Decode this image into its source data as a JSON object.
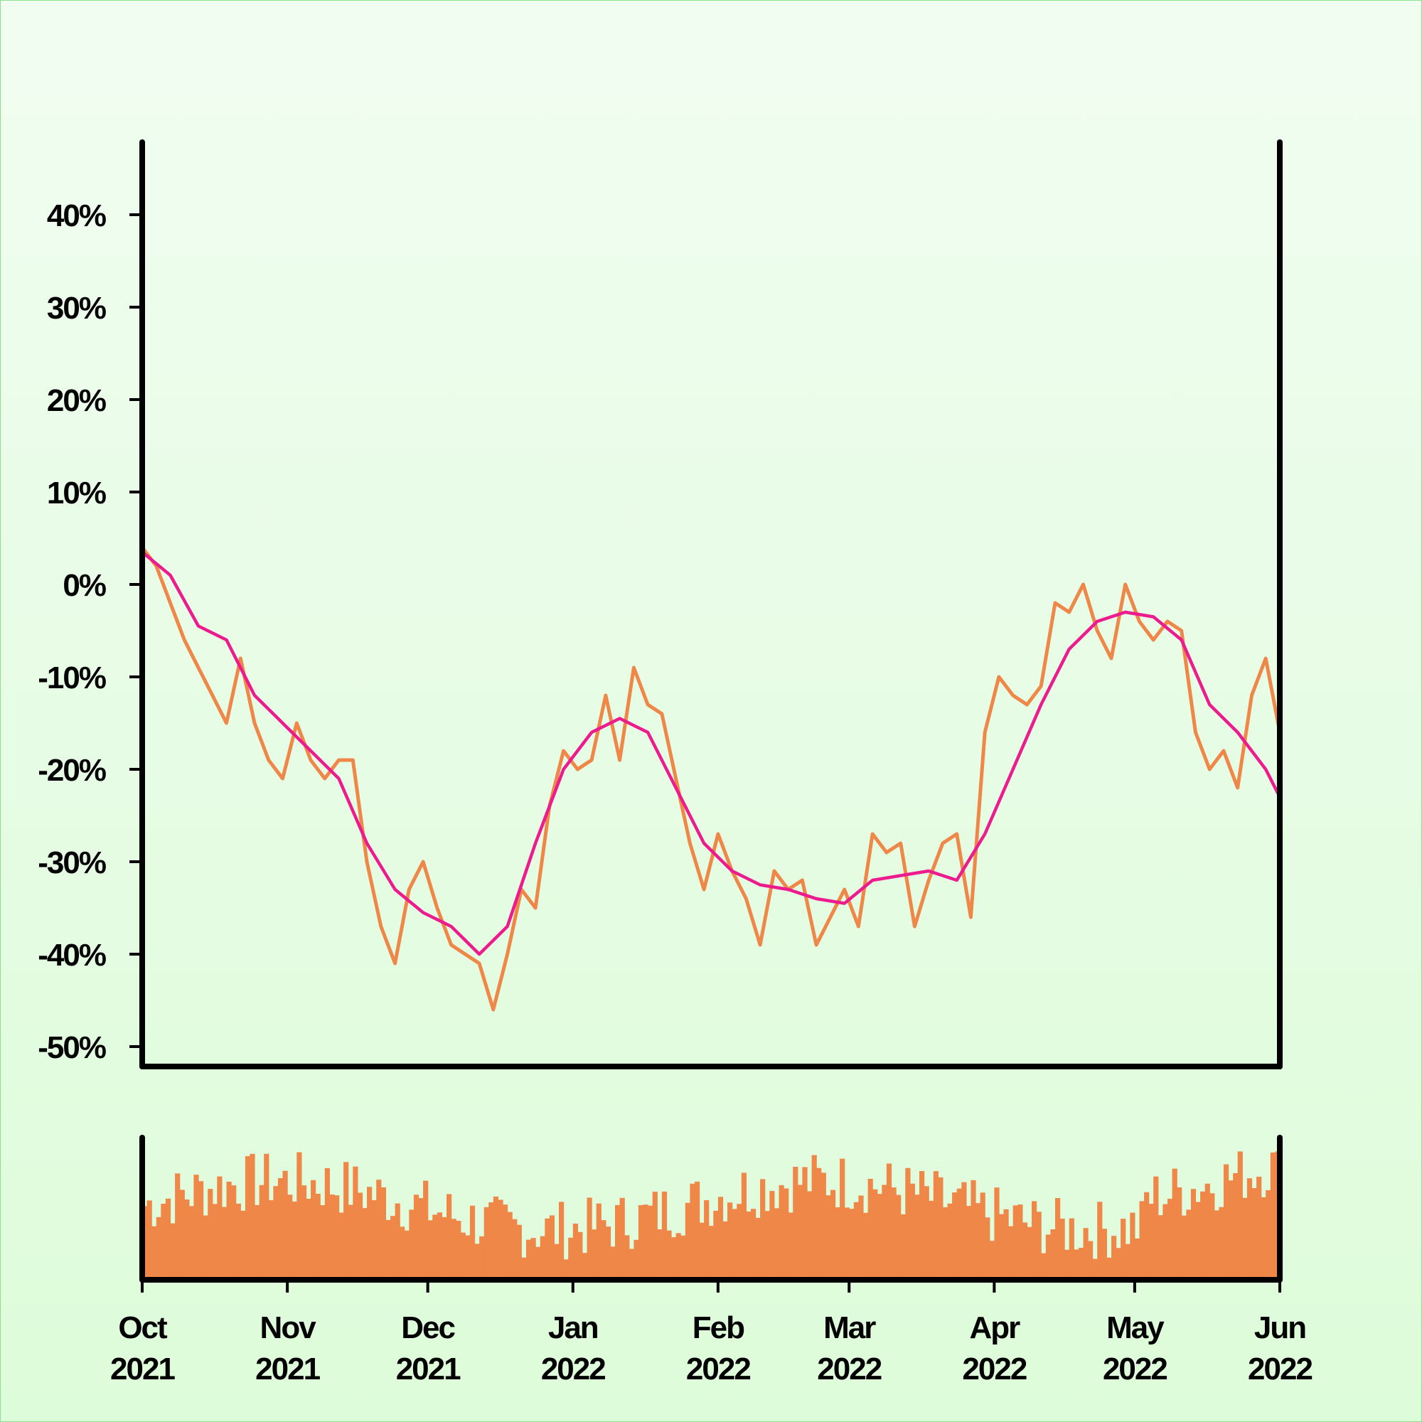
{
  "chart_data": {
    "type": "line",
    "y_axis": {
      "ticks": [
        40,
        30,
        20,
        10,
        0,
        -10,
        -20,
        -30,
        -40,
        -50
      ],
      "tick_labels": [
        "40%",
        "30%",
        "20%",
        "10%",
        "0%",
        "-10%",
        "-20%",
        "-30%",
        "-40%",
        "-50%"
      ],
      "ylim": [
        -52,
        48
      ]
    },
    "x_axis": {
      "start": "2021-10-01",
      "end": "2022-06-01",
      "ticks": [
        "2021-10-01",
        "2021-11-01",
        "2021-12-01",
        "2022-01-01",
        "2022-02-01",
        "2022-03-01",
        "2022-04-01",
        "2022-05-01",
        "2022-06-01"
      ],
      "tick_labels": [
        [
          "Oct",
          "2021"
        ],
        [
          "Nov",
          "2021"
        ],
        [
          "Dec",
          "2021"
        ],
        [
          "Jan",
          "2022"
        ],
        [
          "Feb",
          "2022"
        ],
        [
          "Mar",
          "2022"
        ],
        [
          "Apr",
          "2022"
        ],
        [
          "May",
          "2022"
        ],
        [
          "Jun",
          "2022"
        ]
      ]
    },
    "series": [
      {
        "key": "daily",
        "color": "#ee8748",
        "points": [
          [
            "2021-10-01",
            4
          ],
          [
            "2021-10-04",
            2
          ],
          [
            "2021-10-07",
            -2
          ],
          [
            "2021-10-10",
            -6
          ],
          [
            "2021-10-13",
            -9
          ],
          [
            "2021-10-16",
            -12
          ],
          [
            "2021-10-19",
            -15
          ],
          [
            "2021-10-22",
            -8
          ],
          [
            "2021-10-25",
            -15
          ],
          [
            "2021-10-28",
            -19
          ],
          [
            "2021-10-31",
            -21
          ],
          [
            "2021-11-03",
            -15
          ],
          [
            "2021-11-06",
            -19
          ],
          [
            "2021-11-09",
            -21
          ],
          [
            "2021-11-12",
            -19
          ],
          [
            "2021-11-15",
            -19
          ],
          [
            "2021-11-18",
            -30
          ],
          [
            "2021-11-21",
            -37
          ],
          [
            "2021-11-24",
            -41
          ],
          [
            "2021-11-27",
            -33
          ],
          [
            "2021-11-30",
            -30
          ],
          [
            "2021-12-03",
            -35
          ],
          [
            "2021-12-06",
            -39
          ],
          [
            "2021-12-09",
            -40
          ],
          [
            "2021-12-12",
            -41
          ],
          [
            "2021-12-15",
            -46
          ],
          [
            "2021-12-18",
            -40
          ],
          [
            "2021-12-21",
            -33
          ],
          [
            "2021-12-24",
            -35
          ],
          [
            "2021-12-27",
            -24
          ],
          [
            "2021-12-30",
            -18
          ],
          [
            "2022-01-02",
            -20
          ],
          [
            "2022-01-05",
            -19
          ],
          [
            "2022-01-08",
            -12
          ],
          [
            "2022-01-11",
            -19
          ],
          [
            "2022-01-14",
            -9
          ],
          [
            "2022-01-17",
            -13
          ],
          [
            "2022-01-20",
            -14
          ],
          [
            "2022-01-23",
            -21
          ],
          [
            "2022-01-26",
            -28
          ],
          [
            "2022-01-29",
            -33
          ],
          [
            "2022-02-01",
            -27
          ],
          [
            "2022-02-04",
            -31
          ],
          [
            "2022-02-07",
            -34
          ],
          [
            "2022-02-10",
            -39
          ],
          [
            "2022-02-13",
            -31
          ],
          [
            "2022-02-16",
            -33
          ],
          [
            "2022-02-19",
            -32
          ],
          [
            "2022-02-22",
            -39
          ],
          [
            "2022-02-25",
            -36
          ],
          [
            "2022-02-28",
            -33
          ],
          [
            "2022-03-03",
            -37
          ],
          [
            "2022-03-06",
            -27
          ],
          [
            "2022-03-09",
            -29
          ],
          [
            "2022-03-12",
            -28
          ],
          [
            "2022-03-15",
            -37
          ],
          [
            "2022-03-18",
            -32
          ],
          [
            "2022-03-21",
            -28
          ],
          [
            "2022-03-24",
            -27
          ],
          [
            "2022-03-27",
            -36
          ],
          [
            "2022-03-30",
            -16
          ],
          [
            "2022-04-02",
            -10
          ],
          [
            "2022-04-05",
            -12
          ],
          [
            "2022-04-08",
            -13
          ],
          [
            "2022-04-11",
            -11
          ],
          [
            "2022-04-14",
            -2
          ],
          [
            "2022-04-17",
            -3
          ],
          [
            "2022-04-20",
            0
          ],
          [
            "2022-04-23",
            -5
          ],
          [
            "2022-04-26",
            -8
          ],
          [
            "2022-04-29",
            0
          ],
          [
            "2022-05-02",
            -4
          ],
          [
            "2022-05-05",
            -6
          ],
          [
            "2022-05-08",
            -4
          ],
          [
            "2022-05-11",
            -5
          ],
          [
            "2022-05-14",
            -16
          ],
          [
            "2022-05-17",
            -20
          ],
          [
            "2022-05-20",
            -18
          ],
          [
            "2022-05-23",
            -22
          ],
          [
            "2022-05-26",
            -12
          ],
          [
            "2022-05-29",
            -8
          ],
          [
            "2022-06-01",
            -16
          ]
        ]
      },
      {
        "key": "moving-average",
        "color": "#ec1b8e",
        "points": [
          [
            "2021-10-01",
            3.5
          ],
          [
            "2021-10-07",
            1
          ],
          [
            "2021-10-13",
            -4.5
          ],
          [
            "2021-10-19",
            -6
          ],
          [
            "2021-10-25",
            -12
          ],
          [
            "2021-10-31",
            -15
          ],
          [
            "2021-11-06",
            -18
          ],
          [
            "2021-11-12",
            -21
          ],
          [
            "2021-11-18",
            -28
          ],
          [
            "2021-11-24",
            -33
          ],
          [
            "2021-11-30",
            -35.5
          ],
          [
            "2021-12-06",
            -37
          ],
          [
            "2021-12-12",
            -40
          ],
          [
            "2021-12-18",
            -37
          ],
          [
            "2021-12-24",
            -28
          ],
          [
            "2021-12-30",
            -20
          ],
          [
            "2022-01-05",
            -16
          ],
          [
            "2022-01-11",
            -14.5
          ],
          [
            "2022-01-17",
            -16
          ],
          [
            "2022-01-23",
            -22
          ],
          [
            "2022-01-29",
            -28
          ],
          [
            "2022-02-04",
            -31
          ],
          [
            "2022-02-10",
            -32.5
          ],
          [
            "2022-02-16",
            -33
          ],
          [
            "2022-02-22",
            -34
          ],
          [
            "2022-02-28",
            -34.5
          ],
          [
            "2022-03-06",
            -32
          ],
          [
            "2022-03-12",
            -31.5
          ],
          [
            "2022-03-18",
            -31
          ],
          [
            "2022-03-24",
            -32
          ],
          [
            "2022-03-30",
            -27
          ],
          [
            "2022-04-05",
            -20
          ],
          [
            "2022-04-11",
            -13
          ],
          [
            "2022-04-17",
            -7
          ],
          [
            "2022-04-23",
            -4
          ],
          [
            "2022-04-29",
            -3
          ],
          [
            "2022-05-05",
            -3.5
          ],
          [
            "2022-05-11",
            -6
          ],
          [
            "2022-05-17",
            -13
          ],
          [
            "2022-05-23",
            -16
          ],
          [
            "2022-05-29",
            -20
          ],
          [
            "2022-06-01",
            -23
          ]
        ]
      }
    ],
    "volume": {
      "color": "#ee8748"
    }
  }
}
